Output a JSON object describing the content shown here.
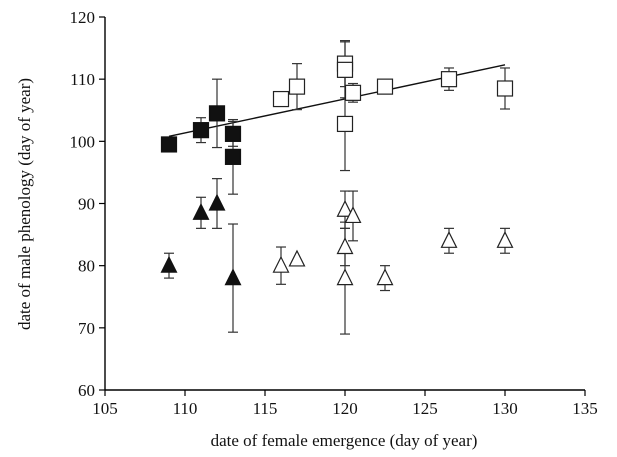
{
  "chart_data": {
    "type": "scatter",
    "xlabel": "date of female emergence (day of year)",
    "ylabel": "date of male phenology (day of year)",
    "xlim": [
      105,
      135
    ],
    "ylim": [
      60,
      120
    ],
    "xticks": [
      105,
      110,
      115,
      120,
      125,
      130,
      135
    ],
    "yticks": [
      60,
      70,
      80,
      90,
      100,
      110,
      120
    ],
    "grid": false,
    "series": [
      {
        "marker": "square",
        "fill": "filled",
        "points": [
          {
            "x": 109,
            "y": 99.5,
            "err": 1
          },
          {
            "x": 111,
            "y": 101.8,
            "err": 2
          },
          {
            "x": 112,
            "y": 104.5,
            "err": 5.5
          },
          {
            "x": 113,
            "y": 101.2,
            "err": 2
          },
          {
            "x": 113,
            "y": 97.5,
            "err": 6
          }
        ]
      },
      {
        "marker": "square",
        "fill": "open",
        "points": [
          {
            "x": 116,
            "y": 106.8,
            "err": 0
          },
          {
            "x": 117,
            "y": 108.8,
            "err": 3.7
          },
          {
            "x": 120,
            "y": 112.5,
            "err": 3.7
          },
          {
            "x": 120,
            "y": 111.5,
            "err": 4.5
          },
          {
            "x": 120,
            "y": 102.8,
            "err": 7.5
          },
          {
            "x": 120.5,
            "y": 107.8,
            "err": 1.5
          },
          {
            "x": 122.5,
            "y": 108.8,
            "err": 0
          },
          {
            "x": 126.5,
            "y": 110,
            "err": 1.8
          },
          {
            "x": 130,
            "y": 108.5,
            "err": 3.3
          }
        ]
      },
      {
        "marker": "triangle",
        "fill": "filled",
        "points": [
          {
            "x": 109,
            "y": 80,
            "err": 2
          },
          {
            "x": 111,
            "y": 88.5,
            "err": 2.5
          },
          {
            "x": 112,
            "y": 90,
            "err": 4
          },
          {
            "x": 113,
            "y": 78,
            "err": 8.7
          }
        ]
      },
      {
        "marker": "triangle",
        "fill": "open",
        "points": [
          {
            "x": 116,
            "y": 80,
            "err": 3
          },
          {
            "x": 117,
            "y": 81,
            "err": 0
          },
          {
            "x": 120,
            "y": 89,
            "err": 3
          },
          {
            "x": 120,
            "y": 83,
            "err": 3
          },
          {
            "x": 120,
            "y": 78,
            "err": 9
          },
          {
            "x": 120.5,
            "y": 88,
            "err": 4
          },
          {
            "x": 122.5,
            "y": 78,
            "err": 2
          },
          {
            "x": 126.5,
            "y": 84,
            "err": 2
          },
          {
            "x": 130,
            "y": 84,
            "err": 2
          }
        ]
      }
    ],
    "trendline": {
      "x": [
        109,
        130
      ],
      "y": [
        100.8,
        112.3
      ]
    }
  }
}
